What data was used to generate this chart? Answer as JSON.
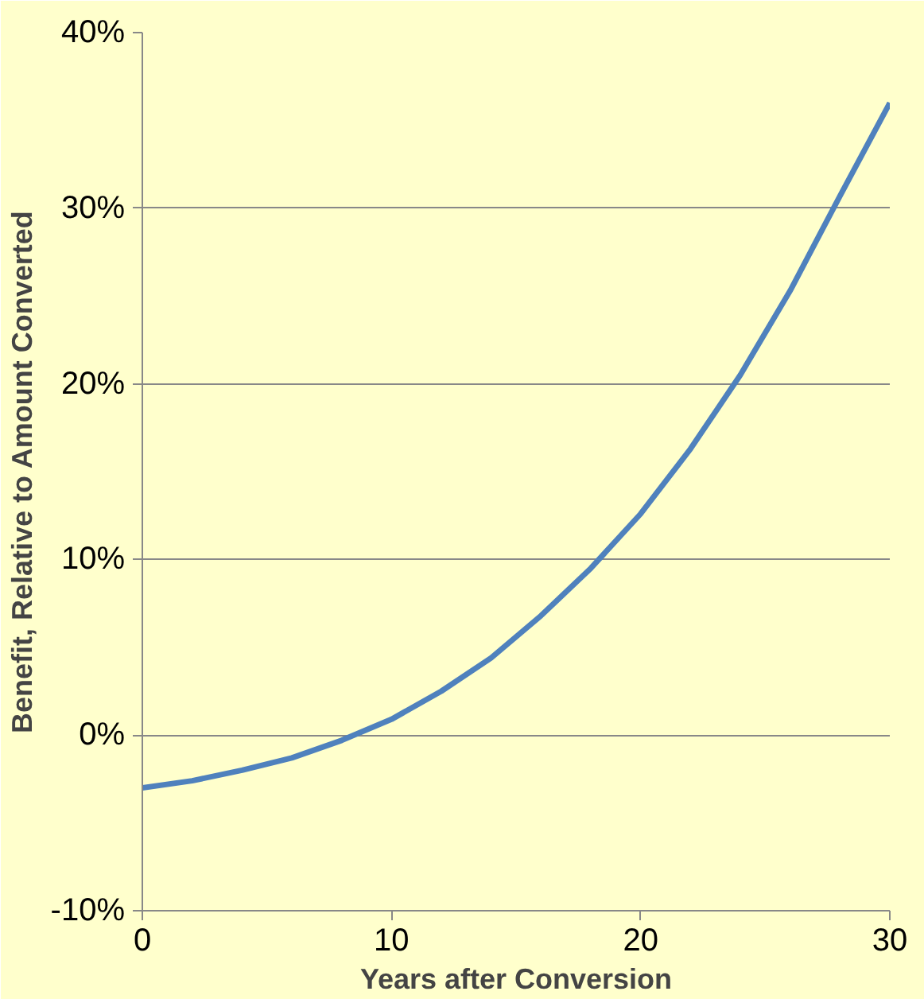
{
  "chart_data": {
    "type": "line",
    "xlabel": "Years after Conversion",
    "ylabel": "Benefit, Relative to Amount Converted",
    "x": [
      0,
      2,
      4,
      6,
      8,
      10,
      12,
      14,
      16,
      18,
      20,
      22,
      24,
      26,
      28,
      30
    ],
    "series": [
      {
        "color": "#4f81bd",
        "values": [
          -3,
          -2.6,
          -2,
          -1.3,
          -0.3,
          0.9,
          2.5,
          4.4,
          6.8,
          9.5,
          12.6,
          16.3,
          20.5,
          25.3,
          30.7,
          36
        ]
      }
    ],
    "xlim": [
      0,
      30
    ],
    "ylim": [
      -10,
      40
    ],
    "xticks": [
      0,
      10,
      20,
      30
    ],
    "yticks": [
      {
        "value": -10,
        "label": "-10%"
      },
      {
        "value": 0,
        "label": "0%"
      },
      {
        "value": 10,
        "label": "10%"
      },
      {
        "value": 20,
        "label": "20%"
      },
      {
        "value": 30,
        "label": "30%"
      },
      {
        "value": 40,
        "label": "40%"
      }
    ],
    "grid": "y",
    "line_style": "solid",
    "marker": "none"
  }
}
